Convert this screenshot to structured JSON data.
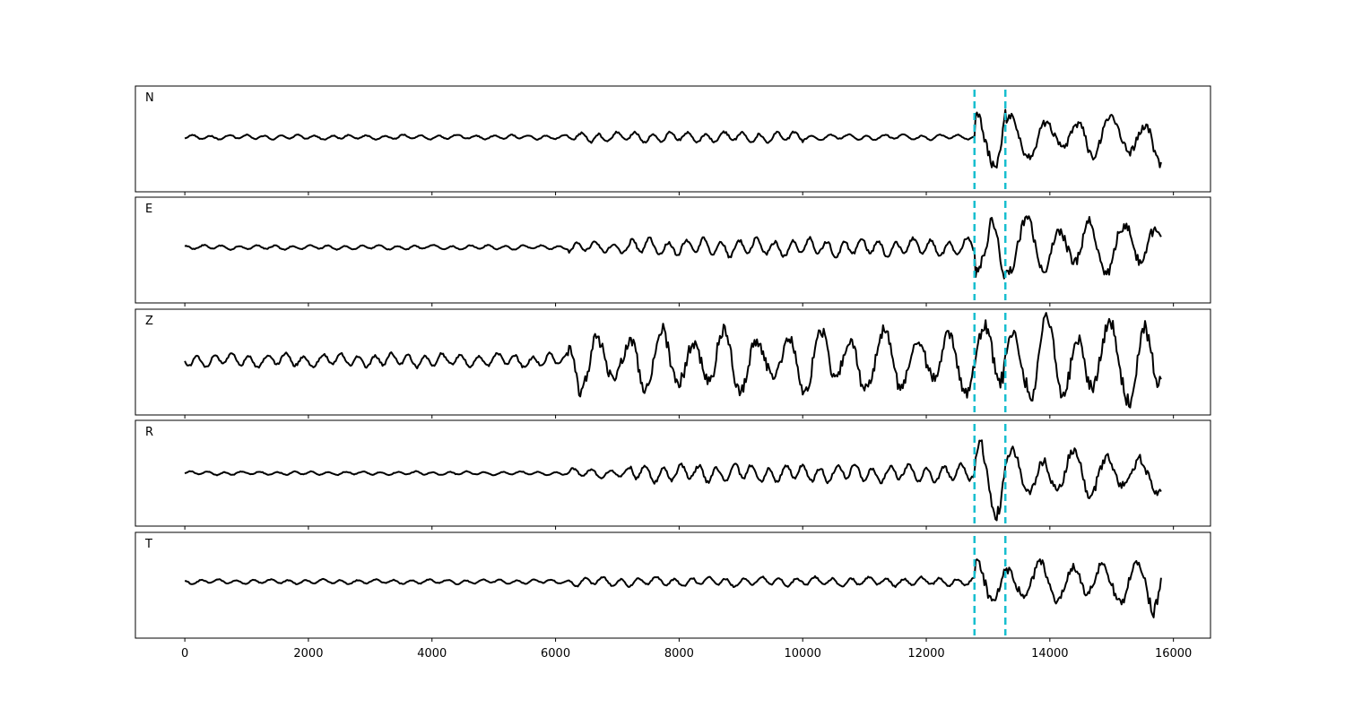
{
  "chart_data": {
    "type": "line",
    "title": "",
    "xlabel": "",
    "ylabel": "",
    "xlim": [
      -800,
      16600
    ],
    "xticks": [
      0,
      2000,
      4000,
      6000,
      8000,
      10000,
      12000,
      14000,
      16000
    ],
    "xtick_labels": [
      "0",
      "2000",
      "4000",
      "6000",
      "8000",
      "10000",
      "12000",
      "14000",
      "16000"
    ],
    "yticks_visible": false,
    "grid": false,
    "legend": "none",
    "x_range": [
      0,
      15800
    ],
    "vertical_markers": {
      "x": [
        12780,
        13280
      ],
      "style": "dashed",
      "color": "#17becf"
    },
    "line_color": "#000000",
    "series": [
      {
        "name": "N",
        "description_of_values": "relative amplitude envelope (approximate, 1.0 = max)",
        "segments": [
          {
            "x_start": 0,
            "x_end": 6200,
            "amplitude": 0.05
          },
          {
            "x_start": 6200,
            "x_end": 10000,
            "amplitude": 0.12
          },
          {
            "x_start": 10000,
            "x_end": 12780,
            "amplitude": 0.06
          },
          {
            "x_start": 12780,
            "x_end": 13280,
            "amplitude": 0.85
          },
          {
            "x_start": 13280,
            "x_end": 15600,
            "amplitude": 0.45
          },
          {
            "x_start": 15600,
            "x_end": 15800,
            "amplitude": 1.0
          }
        ]
      },
      {
        "name": "E",
        "description_of_values": "relative amplitude envelope (approximate, 1.0 = max)",
        "segments": [
          {
            "x_start": 0,
            "x_end": 6200,
            "amplitude": 0.05
          },
          {
            "x_start": 6200,
            "x_end": 7200,
            "amplitude": 0.12
          },
          {
            "x_start": 7200,
            "x_end": 12780,
            "amplitude": 0.2
          },
          {
            "x_start": 12780,
            "x_end": 13280,
            "amplitude": 0.95
          },
          {
            "x_start": 13280,
            "x_end": 15800,
            "amplitude": 0.6
          }
        ]
      },
      {
        "name": "Z",
        "description_of_values": "relative amplitude envelope (approximate, 1.0 = max)",
        "segments": [
          {
            "x_start": 0,
            "x_end": 6200,
            "amplitude": 0.15
          },
          {
            "x_start": 6200,
            "x_end": 12780,
            "amplitude": 0.7
          },
          {
            "x_start": 12780,
            "x_end": 13280,
            "amplitude": 0.9
          },
          {
            "x_start": 13280,
            "x_end": 15800,
            "amplitude": 0.9
          }
        ]
      },
      {
        "name": "R",
        "description_of_values": "relative amplitude envelope (approximate, 1.0 = max)",
        "segments": [
          {
            "x_start": 0,
            "x_end": 6200,
            "amplitude": 0.04
          },
          {
            "x_start": 6200,
            "x_end": 7200,
            "amplitude": 0.1
          },
          {
            "x_start": 7200,
            "x_end": 12780,
            "amplitude": 0.2
          },
          {
            "x_start": 12780,
            "x_end": 13280,
            "amplitude": 1.0
          },
          {
            "x_start": 13280,
            "x_end": 15800,
            "amplitude": 0.5
          }
        ]
      },
      {
        "name": "T",
        "description_of_values": "relative amplitude envelope (approximate, 1.0 = max)",
        "segments": [
          {
            "x_start": 0,
            "x_end": 6200,
            "amplitude": 0.05
          },
          {
            "x_start": 6200,
            "x_end": 12780,
            "amplitude": 0.1
          },
          {
            "x_start": 12780,
            "x_end": 13280,
            "amplitude": 0.55
          },
          {
            "x_start": 13280,
            "x_end": 15500,
            "amplitude": 0.45
          },
          {
            "x_start": 15500,
            "x_end": 15800,
            "amplitude": 1.0
          }
        ]
      }
    ]
  }
}
